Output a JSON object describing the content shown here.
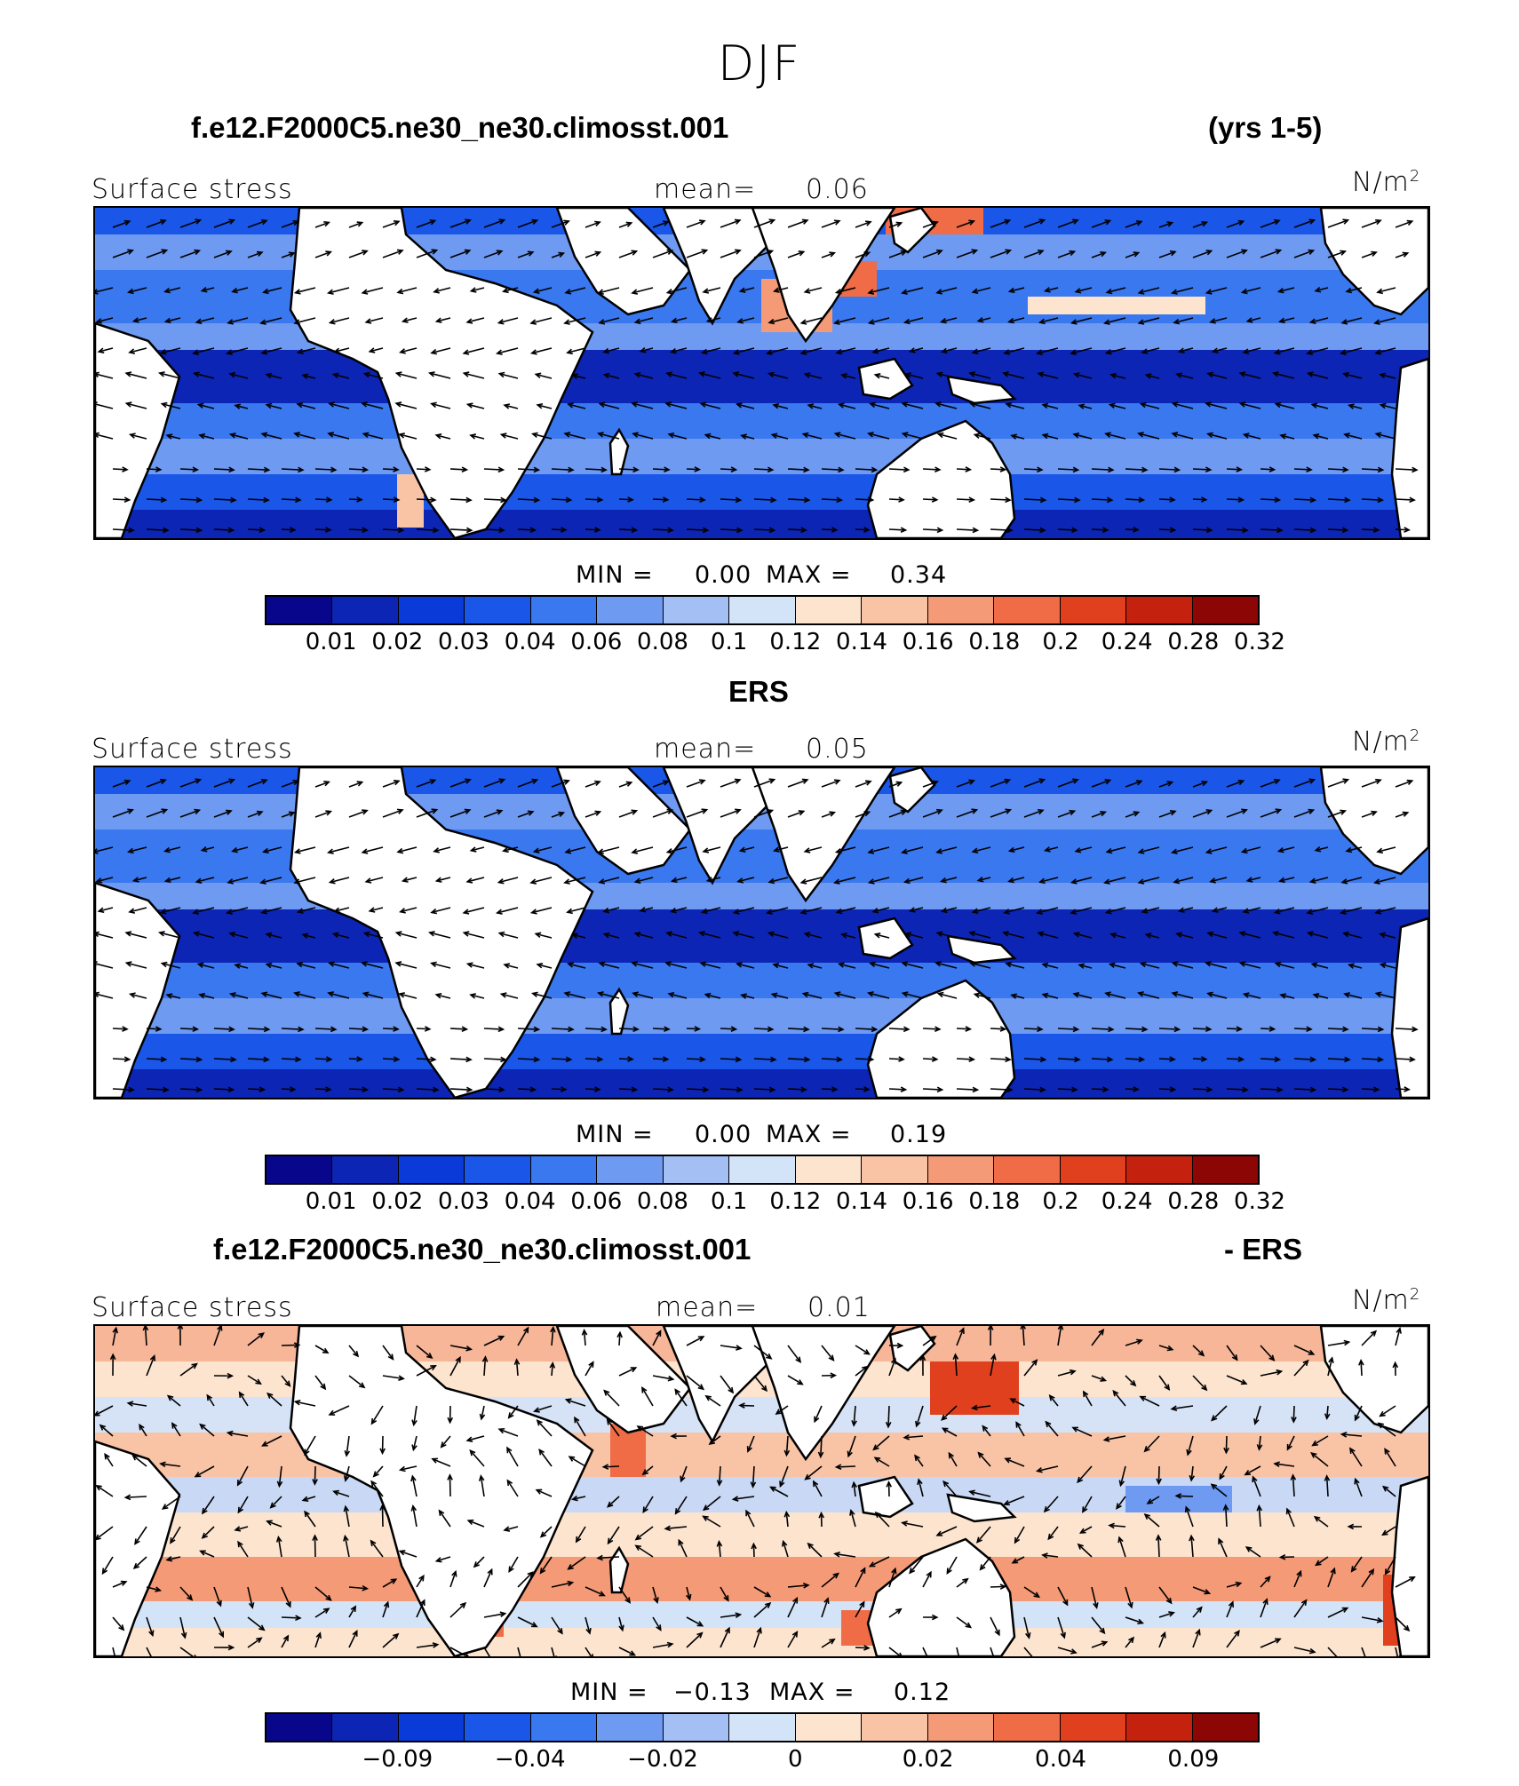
{
  "page_title": "DJF",
  "panels": [
    {
      "title_left": "f.e12.F2000C5.ne30_ne30.climosst.001",
      "title_right": "(yrs 1-5)",
      "label_left": "Surface stress",
      "mean_label": "mean=",
      "mean_value": "0.06",
      "units": "N/m",
      "units_sup": "2",
      "min_label": "MIN =",
      "min_value": "0.00",
      "max_label": "MAX =",
      "max_value": "0.34",
      "colorbar_ticks": [
        "0.01",
        "0.02",
        "0.03",
        "0.04",
        "0.06",
        "0.08",
        "0.1",
        "0.12",
        "0.14",
        "0.16",
        "0.18",
        "0.2",
        "0.24",
        "0.28",
        "0.32"
      ],
      "field": "model"
    },
    {
      "title_left": "ERS",
      "title_right": "",
      "label_left": "Surface stress",
      "mean_label": "mean=",
      "mean_value": "0.05",
      "units": "N/m",
      "units_sup": "2",
      "min_label": "MIN =",
      "min_value": "0.00",
      "max_label": "MAX =",
      "max_value": "0.19",
      "colorbar_ticks": [
        "0.01",
        "0.02",
        "0.03",
        "0.04",
        "0.06",
        "0.08",
        "0.1",
        "0.12",
        "0.14",
        "0.16",
        "0.18",
        "0.2",
        "0.24",
        "0.28",
        "0.32"
      ],
      "field": "obs"
    },
    {
      "title_left": "f.e12.F2000C5.ne30_ne30.climosst.001",
      "title_right": "- ERS",
      "label_left": "Surface stress",
      "mean_label": "mean=",
      "mean_value": "0.01",
      "units": "N/m",
      "units_sup": "2",
      "min_label": "MIN =",
      "min_value": "−0.13",
      "max_label": "MAX =",
      "max_value": "0.12",
      "colorbar_ticks": [
        "",
        "−0.09",
        "",
        "−0.04",
        "",
        "−0.02",
        "",
        "0",
        "",
        "0.02",
        "",
        "0.04",
        "",
        "0.09",
        ""
      ],
      "field": "diff"
    }
  ],
  "colorbar_colors": [
    "#08078c",
    "#0c25b5",
    "#0a3ad8",
    "#1a56e8",
    "#3a78f0",
    "#6e9af2",
    "#a3bff4",
    "#d3e4f8",
    "#fde4cf",
    "#f9c3a6",
    "#f59a76",
    "#ef6c47",
    "#e0401e",
    "#c4220e",
    "#8c0606"
  ],
  "coast_color": "#000000",
  "arrow_color": "#000000"
}
